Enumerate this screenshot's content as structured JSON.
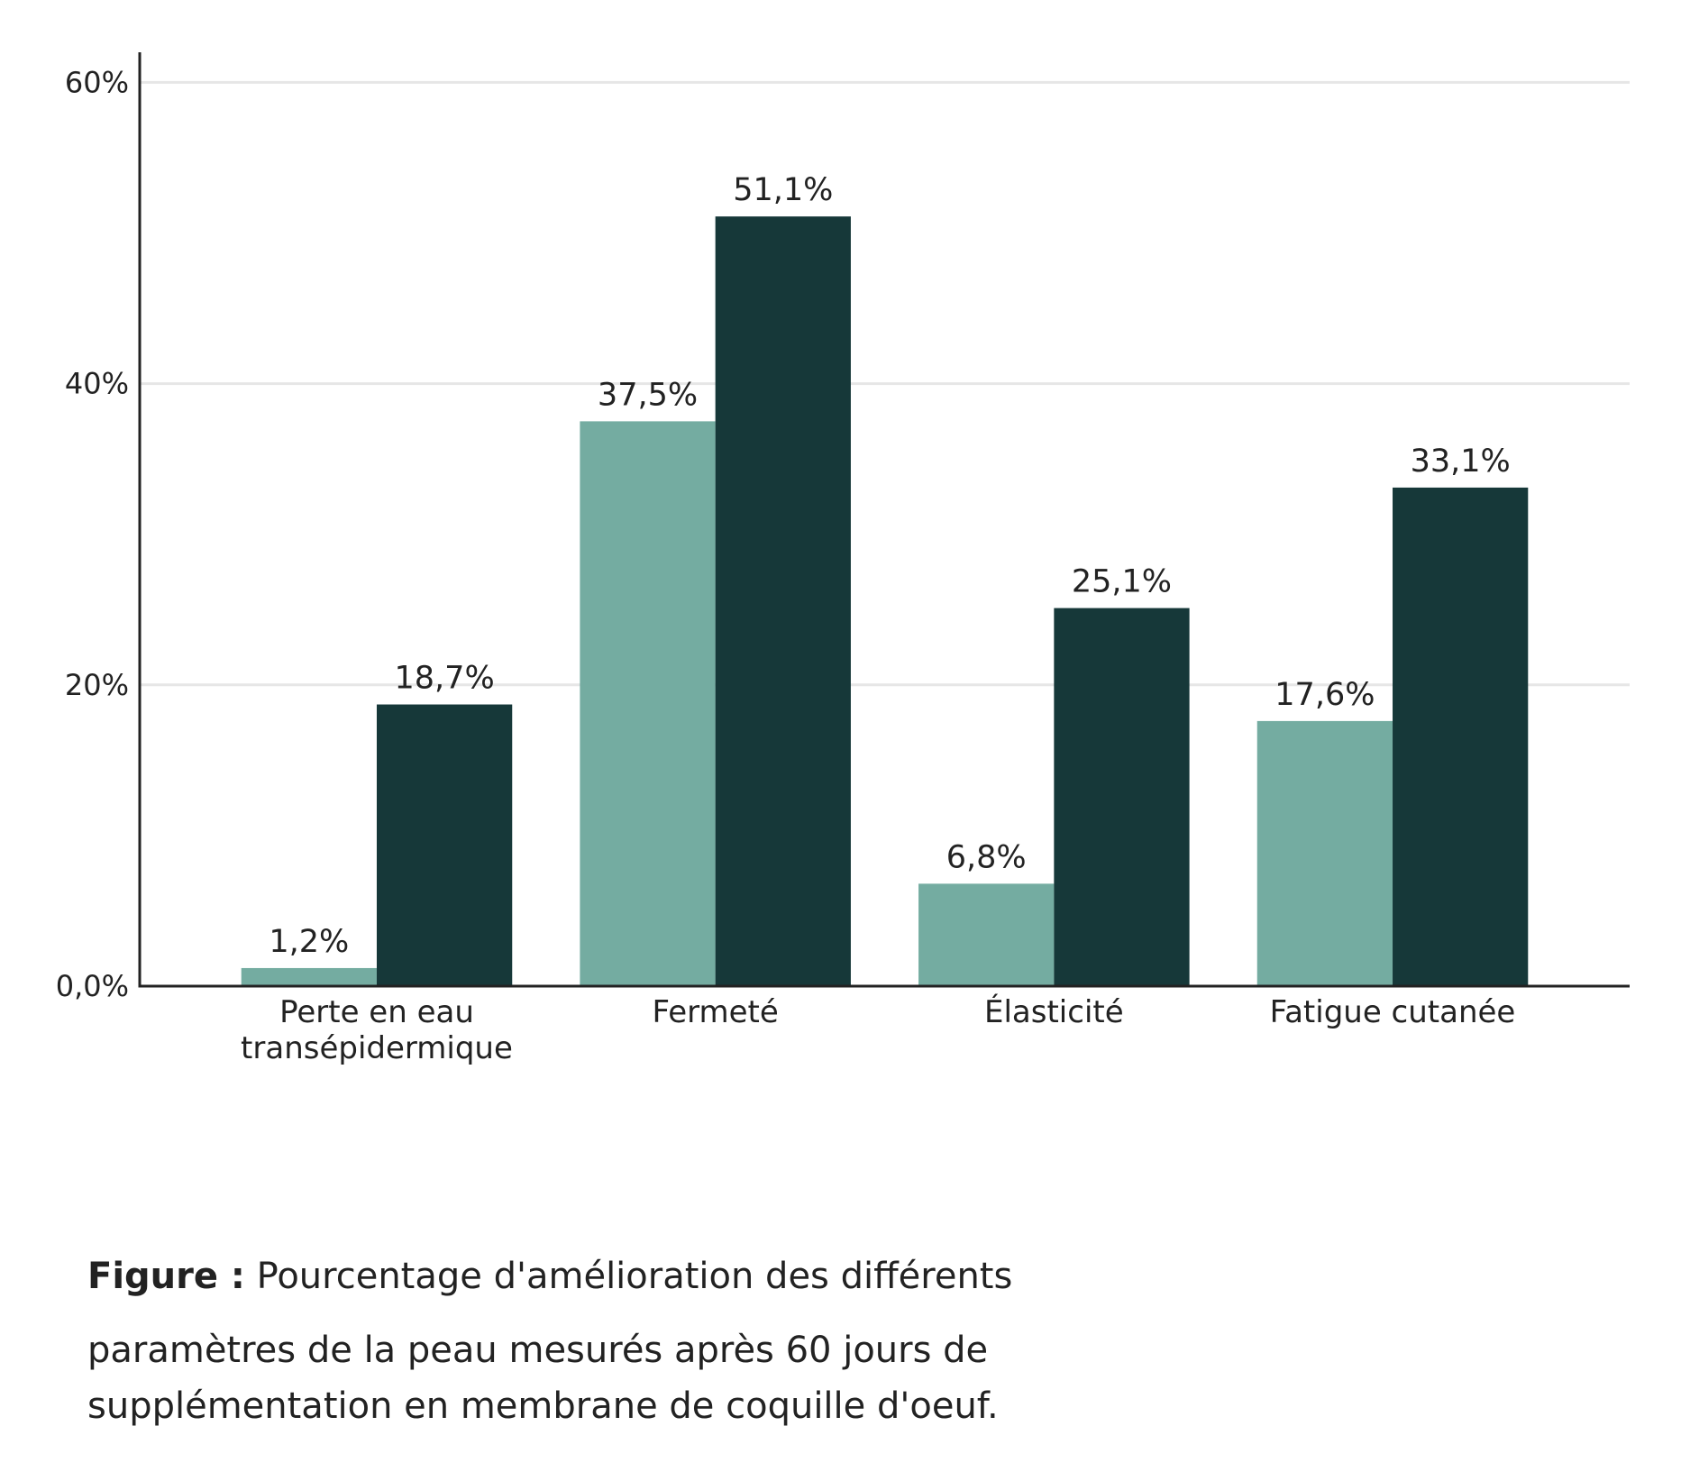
{
  "chart_data": {
    "type": "bar",
    "categories": [
      [
        "Perte en eau",
        "transépidermique"
      ],
      [
        "Fermeté"
      ],
      [
        "Élasticité"
      ],
      [
        "Fatigue cutanée"
      ]
    ],
    "series": [
      {
        "values": [
          1.2,
          37.5,
          6.8,
          17.6
        ],
        "labels": [
          "1,2%",
          "37,5%",
          "6,8%",
          "17,6%"
        ],
        "color": "#74aca1"
      },
      {
        "values": [
          18.7,
          51.1,
          25.1,
          33.1
        ],
        "labels": [
          "18,7%",
          "51,1%",
          "25,1%",
          "33,1%"
        ],
        "color": "#163839"
      }
    ],
    "ylim": [
      0,
      62
    ],
    "yticks": [
      0,
      20,
      40,
      60
    ],
    "ytick_labels": [
      "0,0%",
      "20%",
      "40%",
      "60%"
    ],
    "grid": true,
    "grid_color": "#e6e6e6",
    "axis_color": "#222222"
  },
  "caption": {
    "bold": "Figure :",
    "line1": "Pourcentage d'amélioration des différents",
    "line2": "paramètres de la peau mesurés après 60 jours de",
    "line3": "supplémentation en membrane de coquille d'oeuf."
  }
}
